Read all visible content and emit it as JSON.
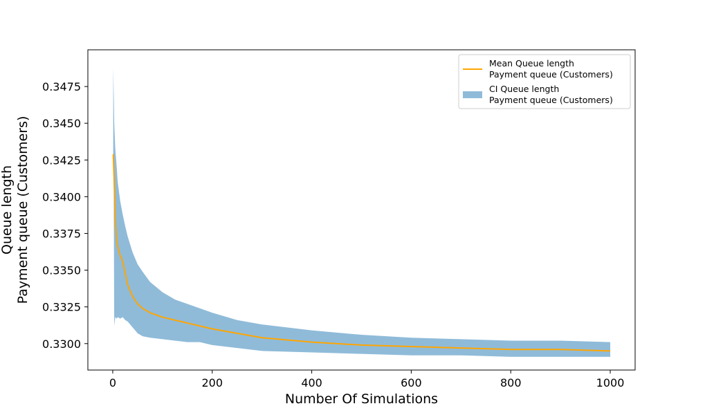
{
  "chart_data": {
    "type": "line",
    "title": "",
    "xlabel": "Number Of Simulations",
    "ylabel_lines": [
      "Queue length",
      "Payment queue (Customers)"
    ],
    "xlim": [
      -50,
      1050
    ],
    "ylim": [
      0.3282,
      0.35
    ],
    "xticks": [
      0,
      200,
      400,
      600,
      800,
      1000
    ],
    "xtick_labels": [
      "0",
      "200",
      "400",
      "600",
      "800",
      "1000"
    ],
    "yticks": [
      0.33,
      0.3325,
      0.335,
      0.3375,
      0.34,
      0.3425,
      0.345,
      0.3475
    ],
    "ytick_labels": [
      "0.3300",
      "0.3325",
      "0.3350",
      "0.3375",
      "0.3400",
      "0.3425",
      "0.3450",
      "0.3475"
    ],
    "grid": false,
    "legend_position": "top-right",
    "series": [
      {
        "name": "Mean Queue length\nPayment queue (Customers)",
        "kind": "line",
        "color": "#ffa500",
        "x": [
          1,
          3,
          5,
          8,
          10,
          15,
          20,
          25,
          30,
          40,
          50,
          60,
          75,
          100,
          125,
          150,
          175,
          200,
          250,
          300,
          400,
          500,
          600,
          700,
          800,
          900,
          1000
        ],
        "y": [
          0.3429,
          0.341,
          0.3385,
          0.337,
          0.3366,
          0.336,
          0.3356,
          0.3348,
          0.334,
          0.3332,
          0.3327,
          0.3324,
          0.3321,
          0.3318,
          0.3316,
          0.3314,
          0.3312,
          0.331,
          0.3307,
          0.3304,
          0.3301,
          0.3299,
          0.3298,
          0.3297,
          0.3296,
          0.3296,
          0.3295
        ]
      },
      {
        "name": "CI Queue length\nPayment queue (Customers)",
        "kind": "band",
        "color": "#1f77b4",
        "opacity": 0.5,
        "x": [
          1,
          2,
          3,
          5,
          8,
          10,
          15,
          20,
          25,
          30,
          40,
          50,
          60,
          75,
          100,
          125,
          150,
          175,
          200,
          250,
          300,
          400,
          500,
          600,
          700,
          800,
          900,
          1000
        ],
        "upper": [
          0.3488,
          0.347,
          0.345,
          0.3433,
          0.342,
          0.341,
          0.3397,
          0.3388,
          0.338,
          0.3373,
          0.3362,
          0.3354,
          0.3349,
          0.3342,
          0.3335,
          0.333,
          0.3327,
          0.3324,
          0.3321,
          0.3316,
          0.3313,
          0.3309,
          0.3306,
          0.3304,
          0.3303,
          0.3302,
          0.3302,
          0.3301
        ],
        "lower": [
          0.3424,
          0.3405,
          0.3312,
          0.3318,
          0.3317,
          0.3318,
          0.3317,
          0.3318,
          0.3316,
          0.3315,
          0.3311,
          0.3307,
          0.3305,
          0.3304,
          0.3303,
          0.3302,
          0.3301,
          0.3301,
          0.3299,
          0.3297,
          0.3295,
          0.3294,
          0.3293,
          0.3292,
          0.3292,
          0.3291,
          0.3291,
          0.3291
        ]
      }
    ]
  }
}
